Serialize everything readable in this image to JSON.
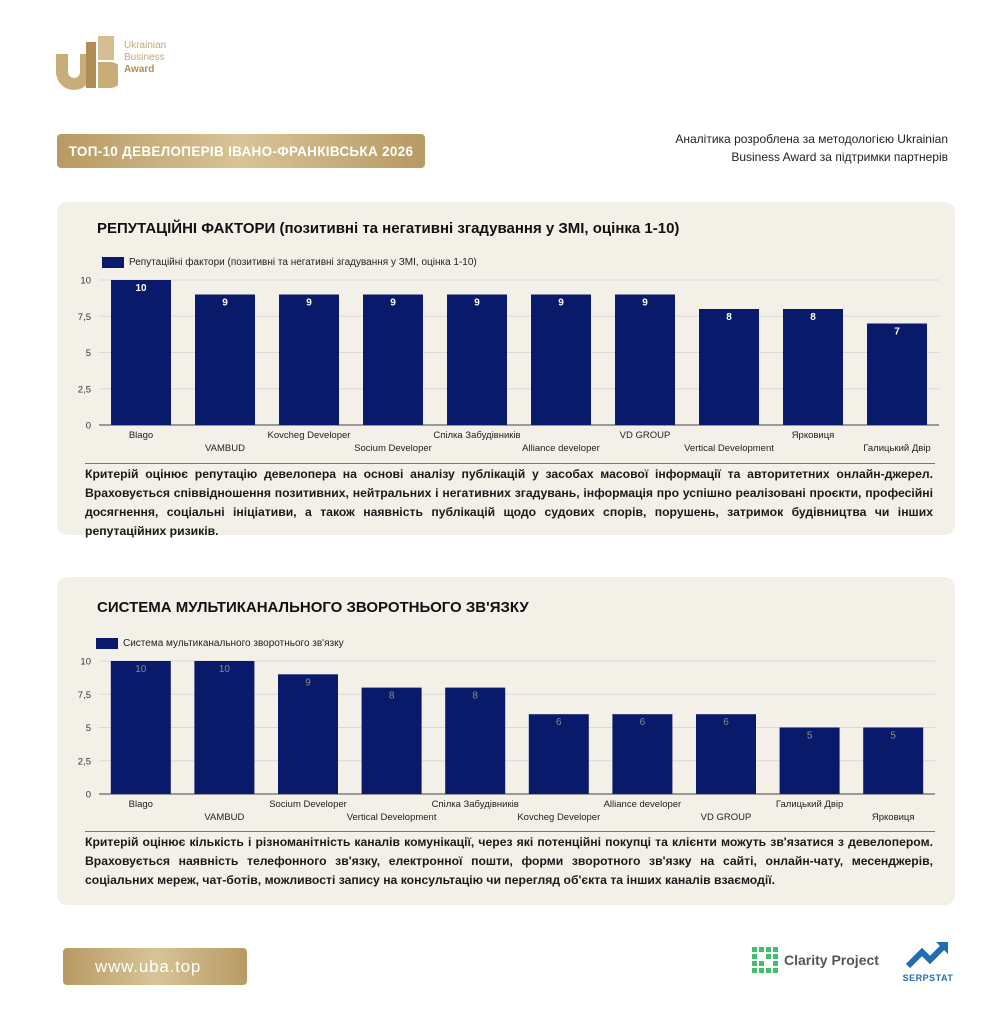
{
  "brand": {
    "logo_line1": "Ukrainian",
    "logo_line2": "Business",
    "logo_line3": "Award",
    "gold": "#b79a63"
  },
  "header": {
    "title": "ТОП-10 ДЕВЕЛОПЕРІВ ІВАНО-ФРАНКІВСЬКА 2026",
    "methodology_line1": "Аналітика розроблена за методологією Ukrainian",
    "methodology_line2": "Business Award за підтримки партнерів"
  },
  "chart_data": [
    {
      "type": "bar",
      "title": "РЕПУТАЦІЙНІ ФАКТОРИ (позитивні та негативні згадування у ЗМІ, оцінка 1-10)",
      "categories": [
        "Blago",
        "VAMBUD",
        "Kovcheg Developer",
        "Socium Developer",
        "Спілка Забудівників",
        "Alliance developer",
        "VD GROUP",
        "Vertical Development",
        "Ярковиця",
        "Галицький Двір"
      ],
      "series": [
        {
          "name": "Репутаційні фактори (позитивні та негативні згадування у ЗМІ, оцінка 1-10)",
          "values": [
            10,
            9,
            9,
            9,
            9,
            9,
            9,
            8,
            8,
            7
          ]
        }
      ],
      "ylim": [
        0,
        10
      ],
      "yticks": [
        "0",
        "2,5",
        "5",
        "7,5",
        "10"
      ],
      "grid": true,
      "legend": "top-left",
      "bar_color": "#0a1a6a",
      "label_color": "#ffffff",
      "description": "Критерій оцінює репутацію девелопера на основі аналізу публікацій у засобах масової інформації та авторитетних онлайн-джерел. Враховується співвідношення позитивних, нейтральних і негативних згадувань, інформація про успішно реалізовані проєкти, професійні досягнення, соціальні ініціативи, а також наявність публікацій щодо судових спорів, порушень, затримок будівництва чи інших репутаційних ризиків."
    },
    {
      "type": "bar",
      "title": "СИСТЕМА МУЛЬТИКАНАЛЬНОГО ЗВОРОТНЬОГО ЗВ'ЯЗКУ",
      "categories": [
        "Blago",
        "VAMBUD",
        "Socium Developer",
        "Vertical Development",
        "Спілка Забудівників",
        "Kovcheg Developer",
        "Alliance developer",
        "VD GROUP",
        "Галицький Двір",
        "Ярковиця"
      ],
      "series": [
        {
          "name": "Система мультиканального зворотнього зв'язку",
          "values": [
            10,
            10,
            9,
            8,
            8,
            6,
            6,
            6,
            5,
            5
          ]
        }
      ],
      "ylim": [
        0,
        10
      ],
      "yticks": [
        "0",
        "2,5",
        "5",
        "7,5",
        "10"
      ],
      "grid": true,
      "legend": "top-left",
      "bar_color": "#0a1a6a",
      "label_color": "#8a8a8a",
      "description": "Критерій оцінює кількість і різноманітність каналів комунікації, через які потенційні покупці та клієнти можуть зв'язатися з девелопером. Враховується наявність телефонного зв'язку, електронної пошти, форми зворотного зв'язку на сайті, онлайн-чату, месенджерів, соціальних мереж, чат-ботів, можливості запису на консультацію чи перегляд об'єкта та інших каналів взаємодії."
    }
  ],
  "footer": {
    "website": "www.uba.top",
    "partner1": "Clarity Project",
    "partner2": "SERPSTAT"
  }
}
